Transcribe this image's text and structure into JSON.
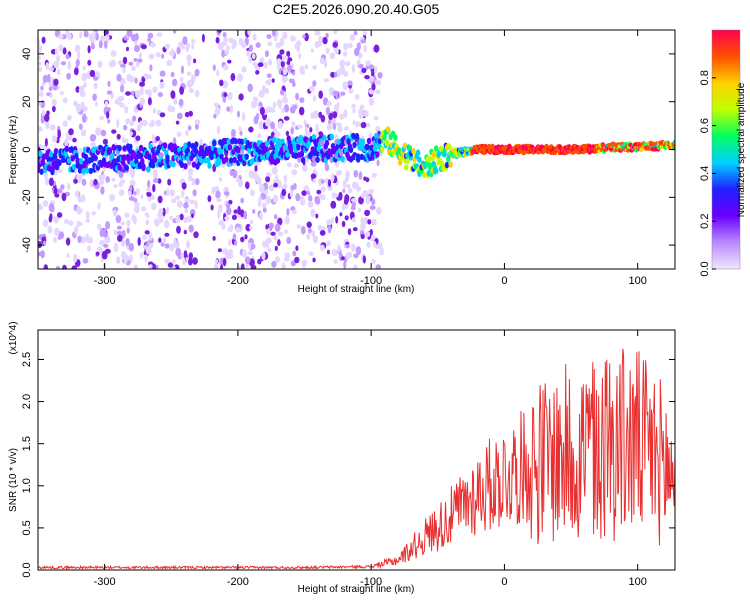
{
  "title": "C2E5.2026.090.20.40.G05",
  "colors": {
    "scatter": "#7a1fe0",
    "line": "#e83030",
    "colorbar": [
      "#f0e6ff",
      "#b98aff",
      "#6a00ff",
      "#2020ff",
      "#00d0ff",
      "#00ff60",
      "#c0ff00",
      "#ffd000",
      "#ff5000",
      "#ff0050"
    ]
  },
  "chart_data": [
    {
      "type": "scatter",
      "title": "C2E5.2026.090.20.40.G05",
      "xlabel": "Height of straight line (km)",
      "ylabel": "Frequency (Hz)",
      "xlim": [
        -350,
        128
      ],
      "ylim": [
        -50,
        50
      ],
      "xticks": [
        -300,
        -200,
        -100,
        0,
        100
      ],
      "yticks": [
        -40,
        -20,
        0,
        20,
        40
      ],
      "colorbar": {
        "label": "Normalized spectral amplitude",
        "range": [
          0,
          1
        ],
        "ticks": [
          "0.0",
          "0.2",
          "0.4",
          "0.6",
          "0.8"
        ]
      },
      "ridge": {
        "x": [
          -350,
          -300,
          -250,
          -200,
          -150,
          -100,
          -88,
          -80,
          -70,
          -60,
          -50,
          -40,
          -30,
          -20,
          -10,
          0,
          20,
          40,
          60,
          80,
          100,
          128
        ],
        "y": [
          -5,
          -4,
          -3,
          -1,
          0,
          1,
          4,
          0,
          -4,
          -8,
          -4,
          -2,
          -1,
          0,
          0,
          0,
          0,
          0,
          0,
          1,
          1,
          2
        ]
      }
    },
    {
      "type": "line",
      "xlabel": "Height of straight line (km)",
      "ylabel": "SNR (10 * v/v)",
      "yscale_label": "(x10^4)",
      "xlim": [
        -350,
        128
      ],
      "ylim": [
        0,
        2.85
      ],
      "xticks": [
        -300,
        -200,
        -100,
        0,
        100
      ],
      "yticks": [
        "0.0",
        "0.5",
        "1.0",
        "1.5",
        "2.0",
        "2.5"
      ],
      "envelope": {
        "x": [
          -350,
          -250,
          -150,
          -100,
          -80,
          -60,
          -40,
          -20,
          0,
          20,
          40,
          60,
          80,
          100,
          110,
          120,
          128
        ],
        "y": [
          0.03,
          0.03,
          0.03,
          0.04,
          0.12,
          0.4,
          0.65,
          0.95,
          1.15,
          1.3,
          1.4,
          1.5,
          1.6,
          1.55,
          1.45,
          1.3,
          1.1
        ]
      }
    }
  ]
}
